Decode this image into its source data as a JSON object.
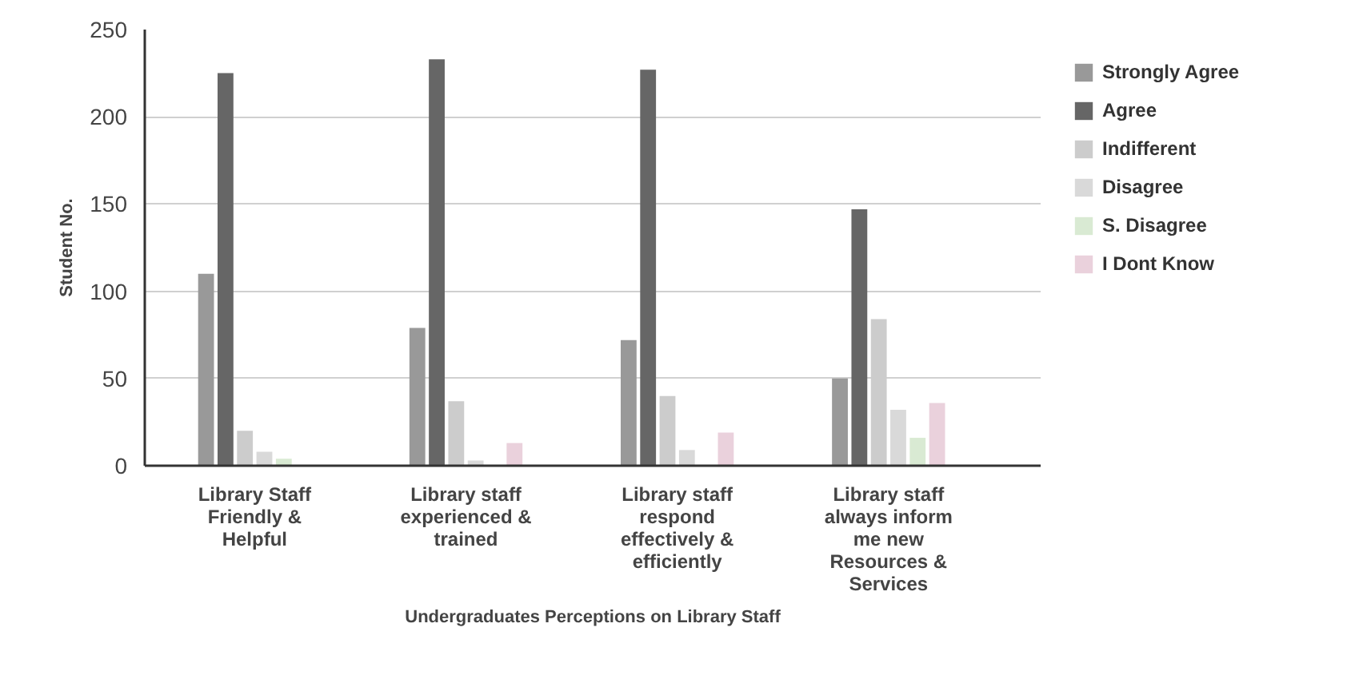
{
  "chart_data": {
    "type": "bar",
    "xlabel": "Undergraduates Perceptions on Library Staff",
    "ylabel": "Student No.",
    "categories": [
      "Library Staff Friendly & Helpful",
      "Library staff experienced & trained",
      "Library staff respond effectively & efficiently",
      "Library staff always inform me new Resources & Services"
    ],
    "series": [
      {
        "name": "Strongly Agree",
        "color": "#999999",
        "values": [
          110,
          79,
          72,
          50
        ]
      },
      {
        "name": "Agree",
        "color": "#666666",
        "values": [
          225,
          233,
          227,
          147
        ]
      },
      {
        "name": "Indifferent",
        "color": "#cccccc",
        "values": [
          20,
          37,
          40,
          84
        ]
      },
      {
        "name": "Disagree",
        "color": "#d9d9d9",
        "values": [
          8,
          3,
          9,
          32
        ]
      },
      {
        "name": "S. Disagree",
        "color": "#d9ead3",
        "values": [
          4,
          0,
          0,
          16
        ]
      },
      {
        "name": "I Dont Know",
        "color": "#ead1dc",
        "values": [
          0,
          13,
          19,
          36
        ]
      }
    ],
    "ylim": [
      0,
      250
    ],
    "yticks": [
      0,
      50,
      100,
      150,
      200,
      250
    ],
    "grid": "y",
    "legend": "top right"
  }
}
